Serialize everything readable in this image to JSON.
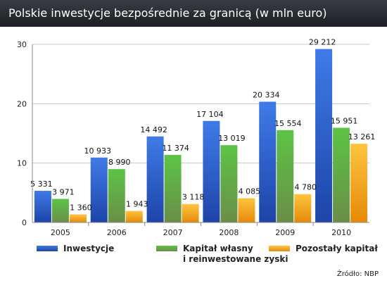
{
  "title": "Polskie inwestycje bezpośrednie za granicą (w mln euro)",
  "source": "Źródło: NBP",
  "colors": {
    "title_bar": "#2a2e33",
    "Inwestycje": "#2f5fd0",
    "Kapitał": "#4caa3a",
    "Pozostały": "#f0a21c"
  },
  "chart_data": {
    "type": "bar",
    "title": "Polskie inwestycje bezpośrednie za granicą (w mln euro)",
    "categories": [
      "2005",
      "2006",
      "2007",
      "2008",
      "2009",
      "2010"
    ],
    "series": [
      {
        "name": "Inwestycje",
        "values": [
          5331,
          10933,
          14492,
          17104,
          20334,
          29212
        ],
        "labels": [
          "5 331",
          "10 933",
          "14 492",
          "17 104",
          "20 334",
          "29 212"
        ]
      },
      {
        "name": "Kapitał własny i reinwestowane zyski",
        "legend_lines": [
          "Kapitał własny",
          "i reinwestowane zyski"
        ],
        "values": [
          3971,
          8990,
          11374,
          13019,
          15554,
          15951
        ],
        "labels": [
          "3 971",
          "8 990",
          "11 374",
          "13 019",
          "15 554",
          "15 951"
        ]
      },
      {
        "name": "Pozostały kapitał",
        "values": [
          1360,
          1943,
          3118,
          4085,
          4780,
          13261
        ],
        "labels": [
          "1 360",
          "1 943",
          "3 118",
          "4 085",
          "4 780",
          "13 261"
        ]
      }
    ],
    "yticks": [
      "0",
      "10",
      "20",
      "30"
    ],
    "ylim": [
      0,
      30000
    ],
    "xlabel": "",
    "ylabel": "",
    "grid": true,
    "legend_position": "bottom"
  }
}
